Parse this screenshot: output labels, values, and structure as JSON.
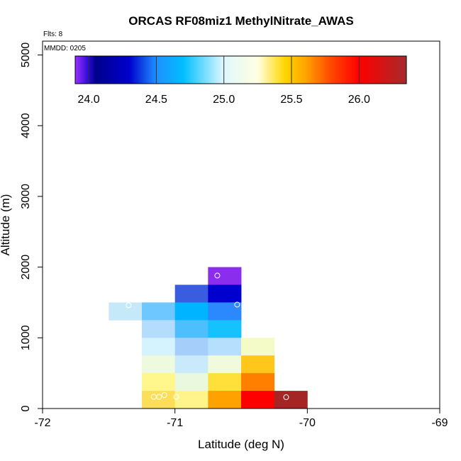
{
  "chart_data": {
    "type": "heatmap",
    "title": "ORCAS RF08miz1 MethylNitrate_AWAS",
    "xlabel": "Latitude (deg N)",
    "ylabel": "Altitude (m)",
    "xlim": [
      -72,
      -69
    ],
    "ylim": [
      0,
      5200
    ],
    "x_ticks": [
      -72,
      -71,
      -70,
      -69
    ],
    "x_tick_labels": [
      "-72",
      "-71",
      "-70",
      "-69"
    ],
    "y_ticks": [
      0,
      1000,
      2000,
      3000,
      4000,
      5000
    ],
    "y_tick_labels": [
      "0",
      "1000",
      "2000",
      "3000",
      "4000",
      "5000"
    ],
    "notes": {
      "flights": "Flts: 8",
      "date": "MMDD: 0205"
    },
    "colorbar": {
      "range": [
        23.9,
        26.35
      ],
      "ticks": [
        24.0,
        24.5,
        25.0,
        25.5,
        26.0
      ],
      "tick_labels": [
        "24.0",
        "24.5",
        "25.0",
        "25.5",
        "26.0"
      ],
      "stops": [
        {
          "value": 23.9,
          "color": "#9b30ff"
        },
        {
          "value": 24.0,
          "color": "#2a0ad8"
        },
        {
          "value": 24.05,
          "color": "#00008b"
        },
        {
          "value": 24.3,
          "color": "#0000cd"
        },
        {
          "value": 24.5,
          "color": "#1e90ff"
        },
        {
          "value": 24.7,
          "color": "#00bfff"
        },
        {
          "value": 25.0,
          "color": "#e0f7ff"
        },
        {
          "value": 25.25,
          "color": "#ffffe0"
        },
        {
          "value": 25.45,
          "color": "#ffd700"
        },
        {
          "value": 25.6,
          "color": "#ffa500"
        },
        {
          "value": 25.8,
          "color": "#ff4500"
        },
        {
          "value": 26.0,
          "color": "#ff0000"
        },
        {
          "value": 26.35,
          "color": "#a52a2a"
        }
      ]
    },
    "cells": [
      {
        "lon": -71.25,
        "alt": 1250,
        "color": "#c6e9fa"
      },
      {
        "lon": -71.0,
        "alt": 1250,
        "color": "#6ec8ff"
      },
      {
        "lon": -71.0,
        "alt": 1000,
        "color": "#b4dcfd"
      },
      {
        "lon": -71.0,
        "alt": 750,
        "color": "#d4f3ff"
      },
      {
        "lon": -71.0,
        "alt": 500,
        "color": "#eefadd"
      },
      {
        "lon": -71.0,
        "alt": 250,
        "color": "#fff68c"
      },
      {
        "lon": -71.0,
        "alt": 0,
        "color": "#fcde5a"
      },
      {
        "lon": -70.75,
        "alt": 1500,
        "color": "#3a5ddf"
      },
      {
        "lon": -70.75,
        "alt": 1250,
        "color": "#00b4ff"
      },
      {
        "lon": -70.75,
        "alt": 1000,
        "color": "#4ebffd"
      },
      {
        "lon": -70.75,
        "alt": 750,
        "color": "#a6cefa"
      },
      {
        "lon": -70.75,
        "alt": 500,
        "color": "#c9eafa"
      },
      {
        "lon": -70.75,
        "alt": 250,
        "color": "#eaf8dd"
      },
      {
        "lon": -70.75,
        "alt": 0,
        "color": "#fff48c"
      },
      {
        "lon": -70.5,
        "alt": 1750,
        "color": "#8a2ded"
      },
      {
        "lon": -70.5,
        "alt": 1500,
        "color": "#0000ce"
      },
      {
        "lon": -70.5,
        "alt": 1250,
        "color": "#2b88fd"
      },
      {
        "lon": -70.5,
        "alt": 1000,
        "color": "#15c2fd"
      },
      {
        "lon": -70.5,
        "alt": 750,
        "color": "#b6dffd"
      },
      {
        "lon": -70.5,
        "alt": 500,
        "color": "#f1fadd"
      },
      {
        "lon": -70.5,
        "alt": 250,
        "color": "#ffdf3a"
      },
      {
        "lon": -70.5,
        "alt": 0,
        "color": "#ffa200"
      },
      {
        "lon": -70.25,
        "alt": 750,
        "color": "#f5fbc7"
      },
      {
        "lon": -70.25,
        "alt": 500,
        "color": "#ffc61b"
      },
      {
        "lon": -70.25,
        "alt": 250,
        "color": "#ff7f00"
      },
      {
        "lon": -70.25,
        "alt": 0,
        "color": "#ff0000"
      },
      {
        "lon": -70.0,
        "alt": 0,
        "color": "#a52525"
      }
    ],
    "points": [
      {
        "lat": -71.35,
        "alt": 1460
      },
      {
        "lat": -70.68,
        "alt": 1880
      },
      {
        "lat": -70.53,
        "alt": 1470
      },
      {
        "lat": -71.16,
        "alt": 165
      },
      {
        "lat": -71.12,
        "alt": 165
      },
      {
        "lat": -71.08,
        "alt": 190
      },
      {
        "lat": -70.99,
        "alt": 165
      },
      {
        "lat": -70.16,
        "alt": 160
      }
    ]
  }
}
